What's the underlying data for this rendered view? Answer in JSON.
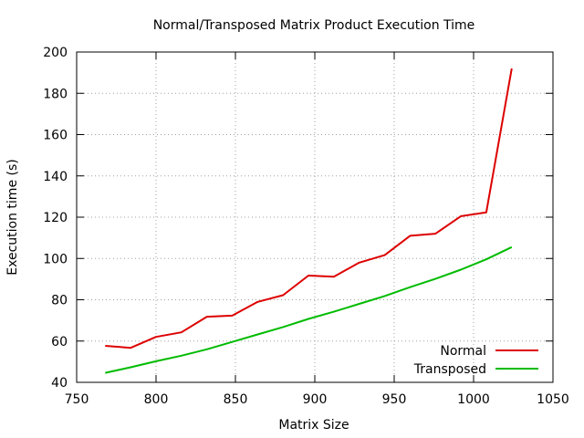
{
  "chart_data": {
    "type": "line",
    "title": "Normal/Transposed Matrix Product Execution Time",
    "xlabel": "Matrix Size",
    "ylabel": "Execution time (s)",
    "xlim": [
      750,
      1050
    ],
    "ylim": [
      40,
      200
    ],
    "xticks": [
      750,
      800,
      850,
      900,
      950,
      1000,
      1050
    ],
    "yticks": [
      40,
      60,
      80,
      100,
      120,
      140,
      160,
      180,
      200
    ],
    "grid": true,
    "legend_position": "bottom-right",
    "series": [
      {
        "name": "Normal",
        "color": "#dd0000",
        "x": [
          768,
          784,
          800,
          816,
          832,
          848,
          864,
          880,
          896,
          912,
          928,
          944,
          960,
          976,
          992,
          1008,
          1024
        ],
        "y": [
          57.7,
          56.7,
          62.0,
          64.2,
          71.8,
          72.3,
          79.0,
          82.2,
          91.7,
          91.2,
          98.0,
          101.6,
          111.0,
          112.0,
          120.5,
          122.3,
          192.0
        ]
      },
      {
        "name": "Transposed",
        "color": "#00bb00",
        "x": [
          768,
          784,
          800,
          816,
          832,
          848,
          864,
          880,
          896,
          912,
          928,
          944,
          960,
          976,
          992,
          1008,
          1024
        ],
        "y": [
          44.6,
          47.3,
          50.2,
          52.9,
          56.0,
          59.6,
          63.2,
          66.8,
          70.7,
          74.2,
          78.0,
          81.8,
          86.1,
          90.1,
          94.6,
          99.6,
          105.5
        ]
      }
    ]
  }
}
